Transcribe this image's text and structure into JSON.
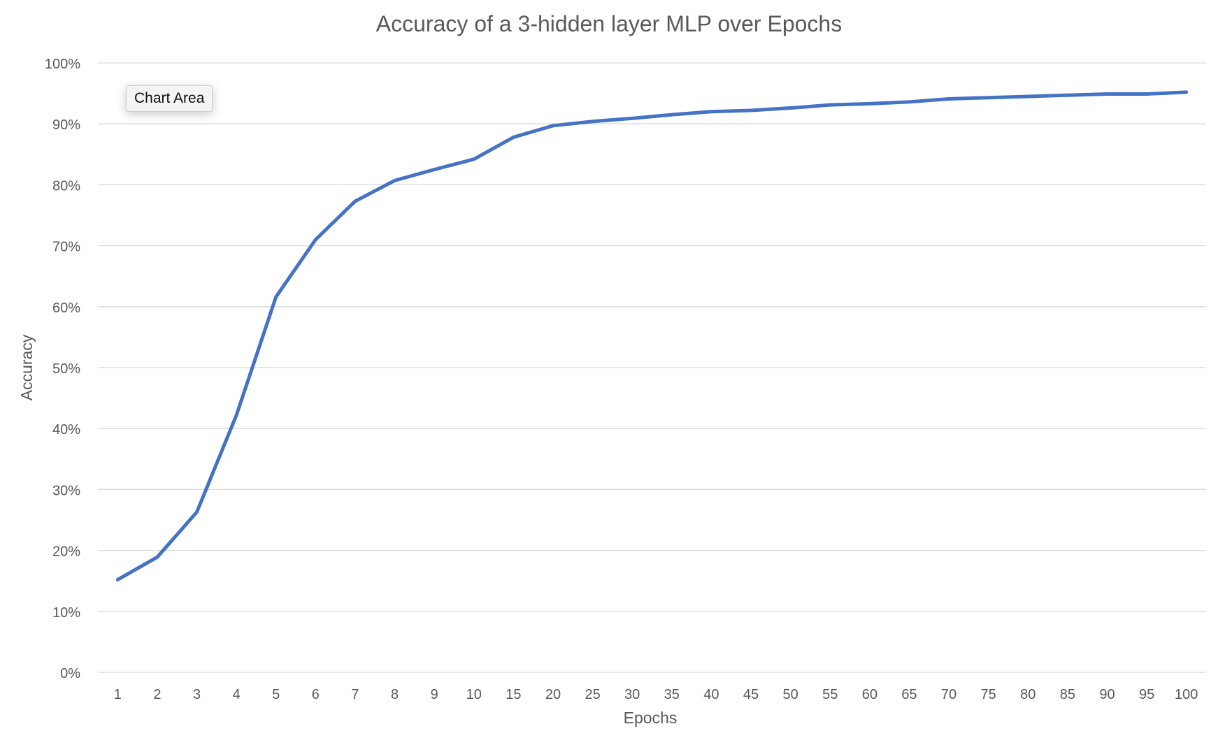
{
  "tooltip_label": "Chart Area",
  "colors": {
    "series": "#4472c4",
    "grid": "#d9d9d9",
    "text": "#595959",
    "background": "#ffffff"
  },
  "chart_data": {
    "type": "line",
    "title": "Accuracy of a 3-hidden layer MLP over Epochs",
    "xlabel": "Epochs",
    "ylabel": "Accuracy",
    "ylim": [
      0,
      1
    ],
    "y_ticks": [
      0,
      0.1,
      0.2,
      0.3,
      0.4,
      0.5,
      0.6,
      0.7,
      0.8,
      0.9,
      1.0
    ],
    "y_tick_labels": [
      "0%",
      "10%",
      "20%",
      "30%",
      "40%",
      "50%",
      "60%",
      "70%",
      "80%",
      "90%",
      "100%"
    ],
    "grid": true,
    "legend": "none",
    "categories": [
      "1",
      "2",
      "3",
      "4",
      "5",
      "6",
      "7",
      "8",
      "9",
      "10",
      "15",
      "20",
      "25",
      "30",
      "35",
      "40",
      "45",
      "50",
      "55",
      "60",
      "65",
      "70",
      "75",
      "80",
      "85",
      "90",
      "95",
      "100"
    ],
    "series": [
      {
        "values": [
          0.152,
          0.189,
          0.263,
          0.422,
          0.616,
          0.71,
          0.773,
          0.807,
          0.825,
          0.842,
          0.878,
          0.897,
          0.904,
          0.909,
          0.915,
          0.92,
          0.922,
          0.926,
          0.931,
          0.933,
          0.936,
          0.941,
          0.943,
          0.945,
          0.947,
          0.949,
          0.949,
          0.952
        ]
      }
    ]
  }
}
